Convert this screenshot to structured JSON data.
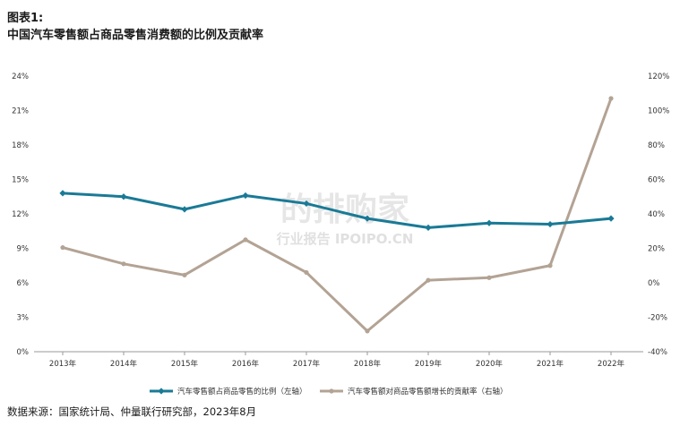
{
  "header": {
    "label": "图表1:",
    "title": "中国汽车零售额占商品零售消费额的比例及贡献率"
  },
  "source": "数据来源：国家统计局、仲量联行研究部，2023年8月",
  "watermark": {
    "main": "的排购家",
    "sub": "行业报告 IPOIPO.CN"
  },
  "colors": {
    "series_left": "#1a7a96",
    "series_right": "#b3a394",
    "axis": "#999999"
  },
  "chart_data": {
    "type": "line",
    "x": [
      "2013年",
      "2014年",
      "2015年",
      "2016年",
      "2017年",
      "2018年",
      "2019年",
      "2020年",
      "2021年",
      "2022年"
    ],
    "y_left": {
      "ylim": [
        0,
        24
      ],
      "ticks": [
        0,
        3,
        6,
        9,
        12,
        15,
        18,
        21,
        24
      ],
      "tick_labels": [
        "0%",
        "3%",
        "6%",
        "9%",
        "12%",
        "15%",
        "18%",
        "21%",
        "24%"
      ]
    },
    "y_right": {
      "ylim": [
        -40,
        120
      ],
      "ticks": [
        -40,
        -20,
        0,
        20,
        40,
        60,
        80,
        100,
        120
      ],
      "tick_labels": [
        "-40%",
        "-20%",
        "0%",
        "20%",
        "40%",
        "60%",
        "80%",
        "100%",
        "120%"
      ]
    },
    "series": [
      {
        "name": "汽车零售额占商品零售的比例（左轴）",
        "axis": "left",
        "values": [
          13.8,
          13.5,
          12.4,
          13.6,
          12.9,
          11.6,
          10.8,
          11.2,
          11.1,
          11.6
        ]
      },
      {
        "name": "汽车零售额对商品零售额增长的贡献率（右轴）",
        "axis": "right",
        "values": [
          20.5,
          11,
          4.5,
          25,
          6,
          -28,
          1.5,
          3,
          10,
          107
        ]
      }
    ],
    "legend_position": "bottom",
    "grid": false
  }
}
